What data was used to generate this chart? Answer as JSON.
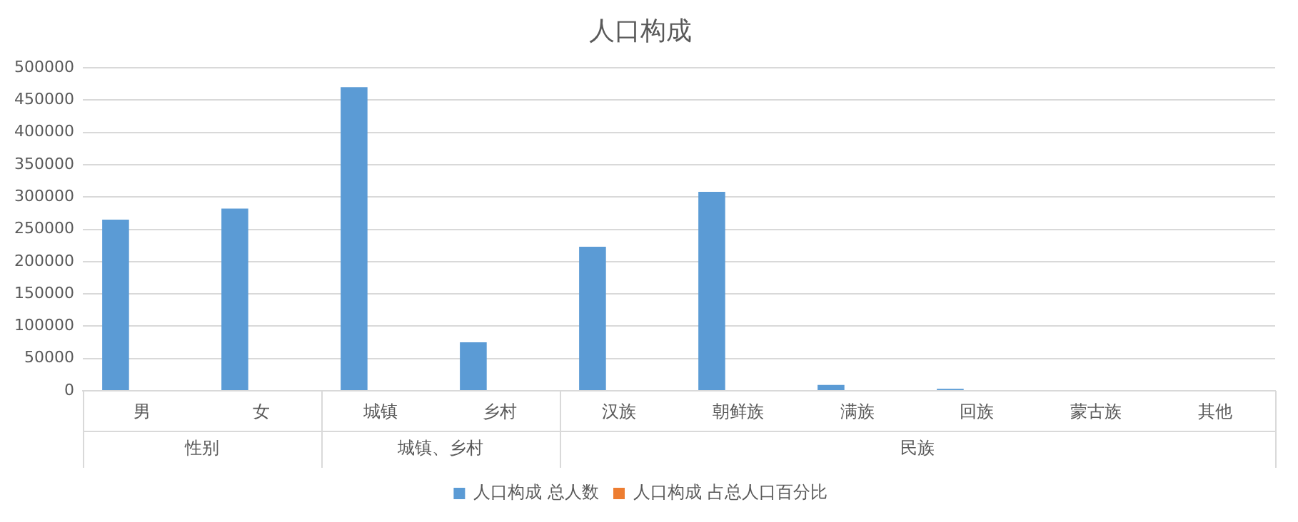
{
  "chart_data": {
    "type": "bar",
    "title": "人口构成",
    "categories": [
      "男",
      "女",
      "城镇",
      "乡村",
      "汉族",
      "朝鲜族",
      "满族",
      "回族",
      "蒙古族",
      "其他"
    ],
    "series": [
      {
        "name": "人口构成 总人数",
        "color": "#5b9bd5",
        "values": [
          265000,
          282000,
          470000,
          75000,
          223000,
          308000,
          9000,
          3000,
          0,
          0
        ]
      },
      {
        "name": "人口构成 占总人口百分比",
        "color": "#ed7d31",
        "values": [
          0,
          0,
          0,
          0,
          0,
          0,
          0,
          0,
          0,
          0
        ]
      }
    ],
    "annotations": [
      "性别",
      "城镇、乡村",
      "民族"
    ],
    "ylim": [
      0,
      500000
    ],
    "yticks": [
      0,
      50000,
      100000,
      150000,
      200000,
      250000,
      300000,
      350000,
      400000,
      450000,
      500000
    ],
    "grid": "y",
    "legend": "bottom"
  }
}
